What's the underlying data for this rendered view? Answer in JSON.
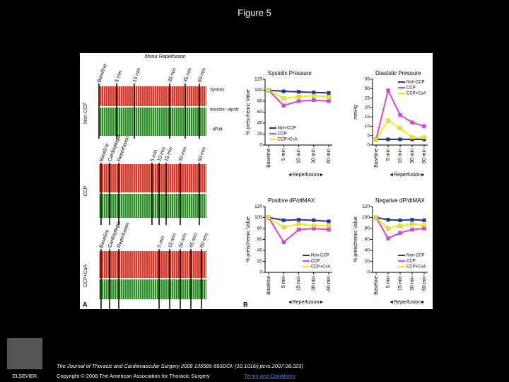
{
  "title": "Figure 5",
  "panel_a": {
    "label": "A",
    "rows": [
      "Non-CCP",
      "CCP",
      "CCP+CsA"
    ],
    "trace_labels": [
      "Systolic",
      "diastolic +dp/dt",
      "- dP/dt"
    ],
    "header": "6hour Reperfusion",
    "row1_times": [
      "Baseline",
      "5 min",
      "15 min",
      "30 min",
      "45 min",
      "60 min"
    ],
    "row2_times": [
      "Baseline",
      "Cardioplegia",
      "Reperfusion",
      "5 min",
      "10 min",
      "15 min",
      "30 min",
      "60 min"
    ],
    "row3_times": [
      "Baseline",
      "Cardioplegia",
      "Reperfusion",
      "5 min",
      "15 min",
      "30 min",
      "45 min",
      "60 min"
    ]
  },
  "panel_b": {
    "label": "B"
  },
  "chart_data": [
    {
      "type": "line",
      "title": "Systolic Pressure",
      "ylabel": "% preischemic Value",
      "xlabel": "◄Reperfusion►",
      "categories": [
        "Baseline",
        "5 min",
        "15 min",
        "30 min",
        "60 min"
      ],
      "ylim": [
        0,
        120
      ],
      "yticks": [
        0,
        20,
        40,
        60,
        80,
        100,
        120
      ],
      "legend": "lower left",
      "series": [
        {
          "name": "Non-CCP",
          "color": "#1f3a93",
          "values": [
            100,
            98,
            97,
            96,
            95
          ]
        },
        {
          "name": "CCP",
          "color": "#e040e0",
          "values": [
            100,
            72,
            80,
            82,
            80
          ]
        },
        {
          "name": "CCP+CsA",
          "color": "#f0f000",
          "values": [
            100,
            85,
            88,
            90,
            88
          ]
        }
      ]
    },
    {
      "type": "line",
      "title": "Diastolic Pressure",
      "ylabel": "mmHg",
      "xlabel": "◄Reperfusion►",
      "categories": [
        "Baseline",
        "5 min",
        "15 min",
        "30 min",
        "60 min"
      ],
      "ylim": [
        0,
        35
      ],
      "yticks": [
        0,
        5,
        10,
        15,
        20,
        25,
        30,
        35
      ],
      "legend": "upper right",
      "series": [
        {
          "name": "Non-CCP",
          "color": "#1f3a93",
          "values": [
            3,
            3,
            3,
            3,
            3
          ]
        },
        {
          "name": "CCP",
          "color": "#e040e0",
          "values": [
            3,
            29,
            16,
            12,
            10
          ]
        },
        {
          "name": "CCP+CsA",
          "color": "#f0f000",
          "values": [
            3,
            13,
            9,
            4,
            4
          ]
        }
      ]
    },
    {
      "type": "line",
      "title": "Positive dP/dtMAX",
      "ylabel": "% preischemic Value",
      "xlabel": "◄Reperfusion►",
      "categories": [
        "Baseline",
        "5 min",
        "15 min",
        "30 min",
        "60 min"
      ],
      "ylim": [
        0,
        120
      ],
      "yticks": [
        0,
        20,
        40,
        60,
        80,
        100,
        120
      ],
      "legend": "lower right",
      "series": [
        {
          "name": "Non-CCP",
          "color": "#1f3a93",
          "values": [
            100,
            95,
            96,
            95,
            93
          ]
        },
        {
          "name": "CCP",
          "color": "#e040e0",
          "values": [
            100,
            55,
            78,
            80,
            78
          ]
        },
        {
          "name": "CCP+CsA",
          "color": "#f0f000",
          "values": [
            100,
            82,
            88,
            85,
            85
          ]
        }
      ]
    },
    {
      "type": "line",
      "title": "Negative dP/dtMAX",
      "ylabel": "% preischemic Value",
      "xlabel": "◄Reperfusion►",
      "categories": [
        "Baseline",
        "5 min",
        "15 min",
        "30 min",
        "60 min"
      ],
      "ylim": [
        0,
        120
      ],
      "yticks": [
        0,
        20,
        40,
        60,
        80,
        100,
        120
      ],
      "legend": "lower right",
      "series": [
        {
          "name": "Non-CCP",
          "color": "#1f3a93",
          "values": [
            100,
            96,
            95,
            96,
            95
          ]
        },
        {
          "name": "CCP",
          "color": "#e040e0",
          "values": [
            100,
            62,
            72,
            78,
            80
          ]
        },
        {
          "name": "CCP+CsA",
          "color": "#f0f000",
          "values": [
            100,
            80,
            85,
            88,
            86
          ]
        }
      ]
    }
  ],
  "footer": {
    "journal": "The Journal of Thoracic and Cardiovascular Surgery 2008 135585-593DOI: (10.1016/j.jtcvs.2007.08.023)",
    "copyright": "Copyright © 2008 The American Association for Thoracic Surgery",
    "link": "Terms and Conditions",
    "logo": "ELSEVIER"
  }
}
